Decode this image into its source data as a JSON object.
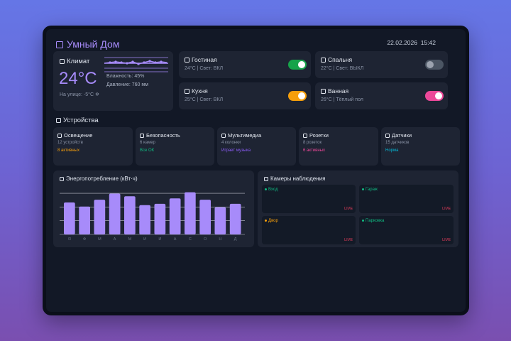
{
  "header": {
    "title": "Умный Дом",
    "date": "22.02.2026",
    "time": "15:42"
  },
  "climate": {
    "title": "Климат",
    "temperature": "24°C",
    "humidity": "Влажность: 45%",
    "pressure": "Давление: 760 мм",
    "outside": "На улице: -5°C ❄"
  },
  "rooms": [
    {
      "name": "Гостиная",
      "details": "24°C  |  Свет: ВКЛ",
      "toggle_color": "#16a34a",
      "on": true
    },
    {
      "name": "Спальня",
      "details": "22°C  |  Свет: ВЫКЛ",
      "toggle_color": "#4b5563",
      "on": false
    },
    {
      "name": "Кухня",
      "details": "25°C  |  Свет: ВКЛ",
      "toggle_color": "#f59e0b",
      "on": true
    },
    {
      "name": "Ванная",
      "details": "26°C  |  Тёплый пол",
      "toggle_color": "#ec4899",
      "on": true
    }
  ],
  "devices_section": {
    "title": "Устройства"
  },
  "devices": [
    {
      "name": "Освещение",
      "count": "12 устройств",
      "status": "8 активных",
      "status_color": "#f59e0b"
    },
    {
      "name": "Безопасность",
      "count": "6 камер",
      "status": "Все ОК",
      "status_color": "#10b981"
    },
    {
      "name": "Мультимедиа",
      "count": "4 колонки",
      "status": "Играет музыка",
      "status_color": "#8b5cf6"
    },
    {
      "name": "Розетки",
      "count": "8 розеток",
      "status": "6 активных",
      "status_color": "#ec4899"
    },
    {
      "name": "Датчики",
      "count": "15 датчиков",
      "status": "Норма",
      "status_color": "#06b6d4"
    }
  ],
  "energy": {
    "title": "Энергопотребление (кВт·ч)",
    "bar_color": "#a78bfa"
  },
  "chart_data": {
    "type": "bar",
    "categories": [
      "Я",
      "Ф",
      "М",
      "А",
      "М",
      "И",
      "И",
      "А",
      "С",
      "О",
      "Н",
      "Д"
    ],
    "values": [
      47,
      41,
      51,
      60,
      56,
      43,
      45,
      53,
      62,
      51,
      40,
      45
    ],
    "ylim": [
      0,
      72
    ],
    "grid": true
  },
  "cameras": {
    "title": "Камеры наблюдения",
    "live_label": "LIVE",
    "items": [
      {
        "name": "Вход",
        "color": "#10b981"
      },
      {
        "name": "Гараж",
        "color": "#10b981"
      },
      {
        "name": "Двор",
        "color": "#f59e0b"
      },
      {
        "name": "Парковка",
        "color": "#10b981"
      }
    ]
  }
}
